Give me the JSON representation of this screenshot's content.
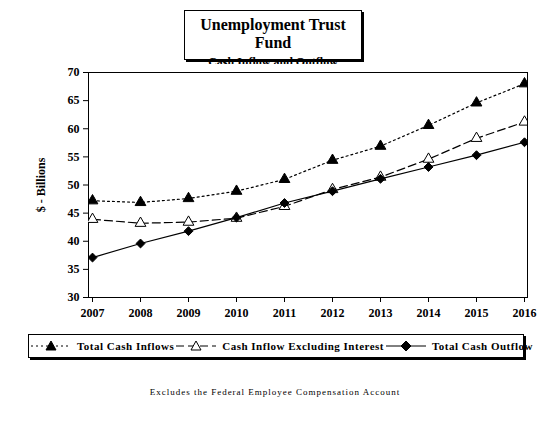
{
  "chart_data": {
    "type": "line",
    "title": "Unemployment Trust Fund",
    "subtitle": "Cash Inflow and Outflow",
    "y_label": "$ - Billions",
    "footnote": "Excludes the Federal Employee Compensation Account",
    "categories": [
      "2007",
      "2008",
      "2009",
      "2010",
      "2011",
      "2012",
      "2013",
      "2014",
      "2015",
      "2016"
    ],
    "series": [
      {
        "name": "Total Cash Inflows",
        "color": "#000000",
        "marker": "triangle",
        "line_style": "dotted",
        "values": [
          47.2,
          46.9,
          47.6,
          48.9,
          51.0,
          54.4,
          56.9,
          60.6,
          64.6,
          68.0
        ]
      },
      {
        "name": "Cash Inflow Excluding Interest",
        "color": "#000000",
        "marker": "open-triangle",
        "line_style": "dashed",
        "values": [
          43.9,
          43.2,
          43.4,
          44.1,
          46.2,
          49.2,
          51.4,
          54.6,
          58.3,
          61.2
        ]
      },
      {
        "name": "Total Cash Outflow",
        "color": "#000000",
        "marker": "diamond",
        "line_style": "solid",
        "values": [
          37.1,
          39.6,
          41.8,
          44.2,
          46.8,
          48.9,
          51.1,
          53.2,
          55.3,
          57.6
        ]
      }
    ],
    "ylim": [
      30,
      70
    ],
    "yticks": [
      30,
      35,
      40,
      45,
      50,
      55,
      60,
      65,
      70
    ],
    "grid": false,
    "legend": "bottom"
  }
}
